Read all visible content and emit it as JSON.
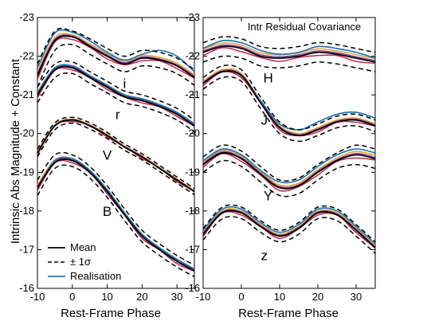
{
  "figure": {
    "ylabel": "Intrinsic Abs Magnitude + Constant",
    "legend": [
      {
        "label": "Mean",
        "style": "solid",
        "color": "#000000"
      },
      {
        "label": "± 1σ",
        "style": "dashed",
        "color": "#000000"
      },
      {
        "label": "Realisation",
        "style": "solid",
        "color": "#1f77b4"
      }
    ]
  },
  "colors": {
    "mean": "#000000",
    "sigma": "#000000",
    "realisation": "#1f77b4",
    "orange": "#e8a33d",
    "red": "#c0274a",
    "purple": "#7b3294"
  },
  "chart_data": [
    {
      "type": "line",
      "title": "",
      "xlabel": "Rest-Frame Phase",
      "ylabel": "Intrinsic Abs Magnitude + Constant",
      "xlim": [
        -10,
        35
      ],
      "ylim": [
        -16,
        -23
      ],
      "y_inverted": true,
      "x_ticks": [
        -10,
        0,
        10,
        20,
        30
      ],
      "y_ticks": [
        -23,
        -22,
        -21,
        -20,
        -19,
        -18,
        -17,
        -16
      ],
      "legend_position": "bottom-left",
      "x": [
        -10,
        -5,
        0,
        5,
        10,
        15,
        20,
        25,
        30,
        35
      ],
      "bands": [
        {
          "name": "i",
          "mean": [
            -21.5,
            -22.4,
            -22.5,
            -22.25,
            -22.0,
            -21.8,
            -21.95,
            -21.9,
            -21.75,
            -21.45
          ],
          "sigma_upper": [
            -21.8,
            -22.65,
            -22.65,
            -22.45,
            -22.2,
            -22.0,
            -22.15,
            -22.1,
            -21.95,
            -21.65
          ],
          "sigma_lower": [
            -21.2,
            -22.15,
            -22.3,
            -22.05,
            -21.8,
            -21.6,
            -21.75,
            -21.7,
            -21.55,
            -21.25
          ],
          "realisation": [
            -21.7,
            -22.6,
            -22.62,
            -22.4,
            -22.1,
            -21.9,
            -22.05,
            -22.15,
            -22.0,
            -21.6
          ]
        },
        {
          "name": "r",
          "mean": [
            -21.0,
            -21.65,
            -21.7,
            -21.45,
            -21.2,
            -20.95,
            -20.85,
            -20.7,
            -20.5,
            -20.2
          ],
          "sigma_upper": [
            -21.2,
            -21.8,
            -21.85,
            -21.6,
            -21.35,
            -21.1,
            -21.0,
            -20.85,
            -20.65,
            -20.35
          ],
          "sigma_lower": [
            -20.8,
            -21.45,
            -21.55,
            -21.3,
            -21.05,
            -20.8,
            -20.7,
            -20.55,
            -20.35,
            -20.05
          ],
          "realisation": [
            -21.05,
            -21.7,
            -21.75,
            -21.5,
            -21.25,
            -21.0,
            -20.9,
            -20.75,
            -20.55,
            -20.25
          ]
        },
        {
          "name": "V",
          "mean": [
            -19.5,
            -20.2,
            -20.35,
            -20.2,
            -19.95,
            -19.65,
            -19.4,
            -19.1,
            -18.8,
            -18.5
          ],
          "sigma_upper": [
            -19.6,
            -20.28,
            -20.42,
            -20.28,
            -20.03,
            -19.73,
            -19.48,
            -19.18,
            -18.88,
            -18.58
          ],
          "sigma_lower": [
            -19.4,
            -20.1,
            -20.27,
            -20.12,
            -19.87,
            -19.57,
            -19.32,
            -19.02,
            -18.72,
            -18.42
          ],
          "realisation": [
            -19.5,
            -20.2,
            -20.35,
            -20.2,
            -19.95,
            -19.65,
            -19.4,
            -19.1,
            -18.8,
            -18.5
          ]
        },
        {
          "name": "B",
          "mean": [
            -18.6,
            -19.25,
            -19.3,
            -19.0,
            -18.5,
            -17.9,
            -17.35,
            -17.0,
            -16.7,
            -16.45
          ],
          "sigma_upper": [
            -18.8,
            -19.45,
            -19.45,
            -19.15,
            -18.65,
            -18.05,
            -17.5,
            -17.15,
            -16.85,
            -16.6
          ],
          "sigma_lower": [
            -18.4,
            -19.1,
            -19.15,
            -18.85,
            -18.35,
            -17.75,
            -17.2,
            -16.85,
            -16.55,
            -16.3
          ],
          "realisation": [
            -18.6,
            -19.3,
            -19.35,
            -19.05,
            -18.55,
            -17.95,
            -17.4,
            -17.05,
            -16.75,
            -16.5
          ]
        }
      ]
    },
    {
      "type": "line",
      "title": "Intr Residual Covariance",
      "xlabel": "Rest-Frame Phase",
      "ylabel": "",
      "xlim": [
        -10,
        35
      ],
      "ylim": [
        -16,
        -23
      ],
      "y_inverted": true,
      "x_ticks": [
        -10,
        0,
        10,
        20,
        30
      ],
      "y_ticks": [
        -23,
        -22,
        -21,
        -20,
        -19,
        -18,
        -17,
        -16
      ],
      "x": [
        -10,
        -5,
        0,
        5,
        10,
        15,
        20,
        25,
        30,
        35
      ],
      "bands": [
        {
          "name": "H",
          "mean": [
            -22.1,
            -22.25,
            -22.2,
            -22.0,
            -21.95,
            -22.0,
            -22.1,
            -22.05,
            -21.95,
            -21.85
          ],
          "sigma_upper": [
            -22.35,
            -22.5,
            -22.45,
            -22.25,
            -22.2,
            -22.25,
            -22.35,
            -22.3,
            -22.2,
            -22.1
          ],
          "sigma_lower": [
            -21.85,
            -22.0,
            -21.95,
            -21.75,
            -21.7,
            -21.75,
            -21.85,
            -21.8,
            -21.7,
            -21.6
          ],
          "realisation": [
            -22.2,
            -22.4,
            -22.35,
            -22.15,
            -22.05,
            -22.1,
            -22.25,
            -22.2,
            -22.1,
            -21.95
          ]
        },
        {
          "name": "J",
          "mean": [
            -21.3,
            -21.6,
            -21.5,
            -20.8,
            -20.15,
            -19.95,
            -20.1,
            -20.3,
            -20.35,
            -20.2
          ],
          "sigma_upper": [
            -21.45,
            -21.75,
            -21.65,
            -20.95,
            -20.3,
            -20.1,
            -20.25,
            -20.45,
            -20.5,
            -20.35
          ],
          "sigma_lower": [
            -21.15,
            -21.45,
            -21.35,
            -20.65,
            -20.0,
            -19.8,
            -19.95,
            -20.15,
            -20.2,
            -20.05
          ],
          "realisation": [
            -21.3,
            -21.6,
            -21.5,
            -20.85,
            -20.25,
            -20.1,
            -20.3,
            -20.5,
            -20.55,
            -20.4
          ]
        },
        {
          "name": "Y",
          "mean": [
            -19.2,
            -19.5,
            -19.35,
            -18.95,
            -18.6,
            -18.65,
            -19.0,
            -19.3,
            -19.45,
            -19.35
          ],
          "sigma_upper": [
            -19.4,
            -19.7,
            -19.55,
            -19.15,
            -18.8,
            -18.85,
            -19.2,
            -19.5,
            -19.7,
            -19.6
          ],
          "sigma_lower": [
            -19.0,
            -19.3,
            -19.15,
            -18.75,
            -18.4,
            -18.45,
            -18.8,
            -19.1,
            -19.2,
            -19.1
          ],
          "realisation": [
            -19.3,
            -19.6,
            -19.45,
            -19.05,
            -18.75,
            -18.8,
            -19.15,
            -19.45,
            -19.6,
            -19.5
          ]
        },
        {
          "name": "z",
          "mean": [
            -17.4,
            -17.95,
            -17.95,
            -17.6,
            -17.35,
            -17.55,
            -17.95,
            -17.9,
            -17.5,
            -17.05
          ],
          "sigma_upper": [
            -17.55,
            -18.1,
            -18.1,
            -17.75,
            -17.5,
            -17.7,
            -18.1,
            -18.05,
            -17.65,
            -17.2
          ],
          "sigma_lower": [
            -17.25,
            -17.8,
            -17.8,
            -17.45,
            -17.2,
            -17.4,
            -17.8,
            -17.75,
            -17.35,
            -16.9
          ],
          "realisation": [
            -17.5,
            -18.05,
            -18.05,
            -17.7,
            -17.45,
            -17.65,
            -18.05,
            -18.0,
            -17.6,
            -17.15
          ]
        }
      ]
    }
  ]
}
